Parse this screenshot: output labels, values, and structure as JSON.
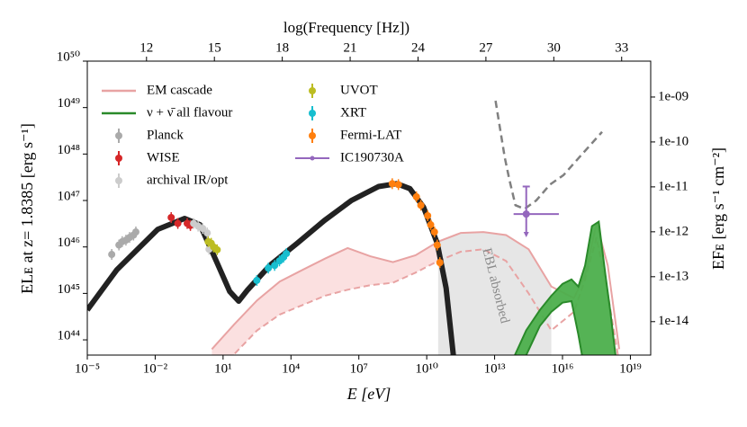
{
  "chart_data": {
    "type": "sed",
    "x_label": "E [eV]",
    "y_label": "ELᴇ at z= 1.8385 [erg s⁻¹]",
    "x2_label": "log(Frequency [Hz])",
    "y2_label": "EFᴇ [erg s⁻¹ cm⁻²]",
    "annotation": "EBL absorbed",
    "log_x": true,
    "log_y": true,
    "xlim": [
      1e-05,
      7.9e+19
    ],
    "ylim": [
      4.7e+43,
      1e+50
    ],
    "x2lim": [
      9.383,
      34.283
    ],
    "y2lim": [
      6.3e-09,
      1.8e-15
    ],
    "xticks": [
      {
        "value": 1e-05,
        "label": "10⁻⁵"
      },
      {
        "value": 0.01,
        "label": "10⁻²"
      },
      {
        "value": 10,
        "label": "10¹"
      },
      {
        "value": 10000.0,
        "label": "10⁴"
      },
      {
        "value": 10000000.0,
        "label": "10⁷"
      },
      {
        "value": 10000000000.0,
        "label": "10¹⁰"
      },
      {
        "value": 10000000000000.0,
        "label": "10¹³"
      },
      {
        "value": 1e+16,
        "label": "10¹⁶"
      },
      {
        "value": 1e+19,
        "label": "10¹⁹"
      }
    ],
    "yticks": [
      {
        "value": 1e+44,
        "label": "10⁴⁴"
      },
      {
        "value": 1e+45,
        "label": "10⁴⁵"
      },
      {
        "value": 1e+46,
        "label": "10⁴⁶"
      },
      {
        "value": 1e+47,
        "label": "10⁴⁷"
      },
      {
        "value": 1e+48,
        "label": "10⁴⁸"
      },
      {
        "value": 1e+49,
        "label": "10⁴⁹"
      },
      {
        "value": 1e+50,
        "label": "10⁵⁰"
      }
    ],
    "x2ticks": [
      12,
      15,
      18,
      21,
      24,
      27,
      30,
      33
    ],
    "y2ticks": [
      {
        "value": 1e-09,
        "label": "1e-09"
      },
      {
        "value": 1e-10,
        "label": "1e-10"
      },
      {
        "value": 1e-11,
        "label": "1e-11"
      },
      {
        "value": 1e-12,
        "label": "1e-12"
      },
      {
        "value": 1e-13,
        "label": "1e-13"
      },
      {
        "value": 1e-14,
        "label": "1e-14"
      }
    ],
    "ebl_range": [
      32000000000.0,
      3200000000000000.0
    ],
    "series": [
      {
        "name": "EM cascade",
        "kind": "band",
        "color": "#e8a3a3",
        "fill": "#fbe0e0",
        "x": [
          3.2,
          32,
          320,
          3200,
          32000.0,
          320000.0,
          3200000.0,
          32000000.0,
          320000000.0,
          3200000000.0,
          32000000000.0,
          320000000000.0,
          3200000000000.0,
          32000000000000.0,
          320000000000000.0,
          3200000000000000.0,
          3.2e+16,
          1e+17,
          3.2e+17,
          1e+18,
          3.2e+18
        ],
        "upper": [
          6.3e+43,
          2.2e+44,
          7.1e+44,
          1.8e+45,
          3.2e+45,
          5.6e+45,
          9.5e+45,
          6.3e+45,
          4.7e+45,
          6.6e+45,
          1.3e+46,
          2e+46,
          2.1e+46,
          1.8e+46,
          8.9e+45,
          1.4e+45,
          7.9e+44,
          2.5e+45,
          3.2e+46,
          4e+45,
          6.3e+43
        ],
        "lower": [
          2e+43,
          5e+43,
          1.6e+44,
          3.5e+44,
          5.6e+44,
          8.9e+44,
          1.2e+45,
          1.5e+45,
          1.7e+45,
          2.8e+45,
          5e+45,
          7.9e+45,
          8.9e+45,
          5e+45,
          1e+45,
          1.6e+44,
          4e+44,
          2e+45,
          1.6e+46,
          1e+45,
          3.2e+43
        ]
      },
      {
        "name": "ν + ν̄ all flavour",
        "kind": "band",
        "color": "#2a8a2a",
        "fill": "#4caf4c",
        "x": [
          79000000000000.0,
          250000000000000.0,
          1000000000000000.0,
          3200000000000000.0,
          1e+16,
          2.5e+16,
          5e+16,
          1e+17,
          2e+17,
          4e+17,
          7.9e+17,
          1.3e+18,
          2.2e+18
        ],
        "upper": [
          4.7e+43,
          1.6e+44,
          4.4e+44,
          8.9e+44,
          1.6e+45,
          2e+45,
          1.4e+45,
          4e+45,
          2.8e+46,
          3.5e+46,
          2.5e+45,
          4e+44,
          4.7e+43
        ],
        "lower": [
          2e+43,
          4.7e+43,
          2e+44,
          4e+44,
          6.3e+44,
          6.8e+44,
          1.3e+44,
          2e+43,
          2e+43,
          2e+43,
          2e+43,
          2e+43,
          2e+43
        ]
      },
      {
        "kind": "line",
        "color": "#222222",
        "width": 6,
        "x": [
          1e-05,
          0.0002,
          0.013,
          0.2,
          0.95,
          5,
          19.5,
          49,
          123,
          1230,
          19000.0,
          300000.0,
          4700000.0,
          74000000.0,
          470000000.0,
          1800000000.0,
          7200000000.0,
          29000000000.0,
          72000000000.0,
          150000000000.0
        ],
        "values": [
          4.4e+44,
          3.2e+45,
          2.4e+46,
          4.1e+46,
          3e+46,
          5e+45,
          1.1e+45,
          6.8e+44,
          1.2e+45,
          4.1e+45,
          1.2e+46,
          3.7e+46,
          1e+47,
          2e+47,
          2.3e+47,
          1.8e+47,
          7.2e+46,
          1.2e+46,
          1.3e+45,
          4.7e+43
        ]
      },
      {
        "kind": "dashed",
        "color": "#808080",
        "width": 2.5,
        "x": [
          11000000000000.0,
          28000000000000.0,
          45000000000000.0,
          83000000000000.0,
          210000000000000.0,
          690000000000000.0,
          2800000000000000.0,
          1.1e+16,
          6.8e+16,
          5.6e+17
        ],
        "values": [
          1.4e+49,
          8.5e+47,
          2.8e+47,
          7.9e+46,
          6.6e+46,
          1e+47,
          2.2e+47,
          3.5e+47,
          9.5e+47,
          3e+48
        ]
      },
      {
        "name": "Planck",
        "kind": "points",
        "color": "#aaaaaa",
        "x": [
          0.00012,
          0.00025,
          0.00035,
          0.00051,
          0.00074,
          0.0011,
          0.0014
        ],
        "values": [
          6.9e+45,
          1.1e+46,
          1.3e+46,
          1.4e+46,
          1.6e+46,
          1.8e+46,
          2.1e+46
        ]
      },
      {
        "name": "WISE",
        "kind": "points",
        "color": "#d62728",
        "x": [
          0.051,
          0.1,
          0.26,
          0.36
        ],
        "values": [
          4.3e+46,
          3.2e+46,
          3.2e+46,
          2.9e+46
        ]
      },
      {
        "name": "archival IR/opt",
        "kind": "points",
        "color": "#cccccc",
        "x": [
          0.5,
          0.79,
          1.26,
          2,
          2.4
        ],
        "values": [
          3.2e+46,
          2.8e+46,
          2.5e+46,
          2e+46,
          8.9e+45
        ]
      },
      {
        "name": "UVOT",
        "kind": "points",
        "color": "#bcbd22",
        "x": [
          2.2,
          3,
          3.8,
          5.5
        ],
        "values": [
          1.3e+46,
          1.2e+46,
          1e+46,
          8.7e+45
        ]
      },
      {
        "name": "XRT",
        "kind": "points",
        "color": "#17becf",
        "x": [
          310,
          1000,
          1900,
          3100,
          4700,
          6300
        ],
        "values": [
          1.9e+45,
          3.5e+45,
          4e+45,
          5e+45,
          6e+45,
          7.2e+45
        ]
      },
      {
        "name": "Fermi-LAT",
        "kind": "points",
        "color": "#ff7f0e",
        "x": [
          300000000.0,
          560000000.0,
          3500000000.0,
          5500000000.0,
          11000000000.0,
          15000000000.0,
          22000000000.0,
          29000000000.0,
          38000000000.0
        ],
        "values": [
          2.3e+47,
          2.2e+47,
          1.2e+47,
          7.9e+46,
          4.7e+46,
          3e+46,
          2.1e+46,
          1.1e+46,
          4.6e+45
        ]
      },
      {
        "name": "IC190730A",
        "kind": "errorpoint",
        "color": "#9467bd",
        "x": [
          250000000000000.0
        ],
        "values": [
          5.1e+46
        ],
        "x_range": [
          69000000000000.0,
          6900000000000000.0
        ],
        "y_range": [
          2.1e+46,
          2e+47
        ]
      }
    ]
  }
}
